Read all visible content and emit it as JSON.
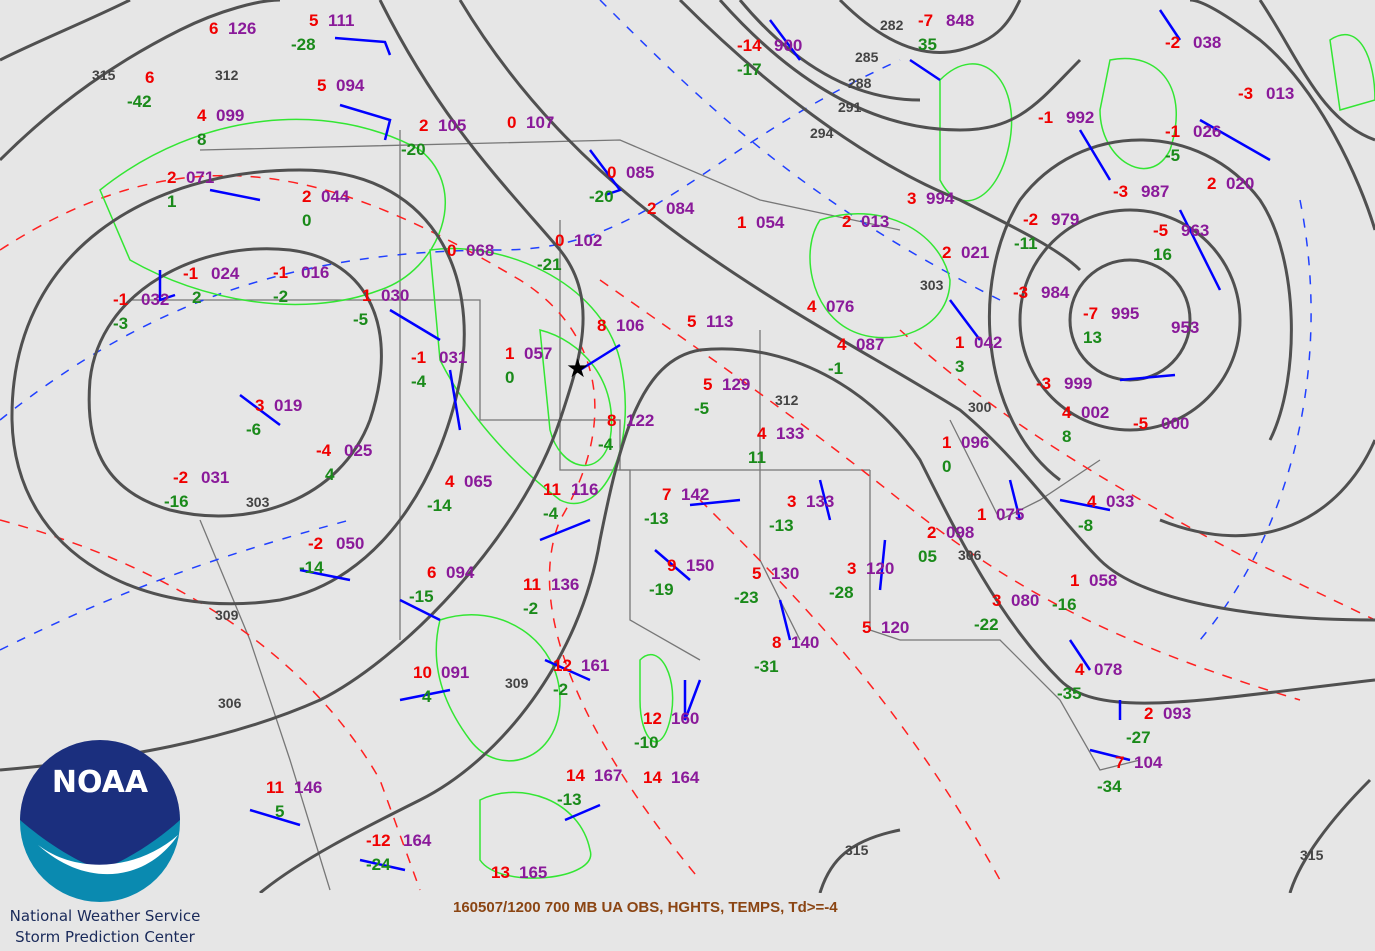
{
  "caption": "160507/1200 700 MB UA OBS, HGHTS, TEMPS, Td>=-4",
  "agency": {
    "line1": "National Weather Service",
    "line2": "Storm Prediction Center",
    "logo_text": "NOAA"
  },
  "colors": {
    "background": "#e6e6e6",
    "height_contour": "#505050",
    "temperature": "#f00000",
    "height": "#8a1a9a",
    "dewpoint": "#1a8a1a",
    "dewpoint_contour": "#33e633",
    "wind_barb": "#0000ff",
    "caption": "#8b4513"
  },
  "contour_labels": [
    "315",
    "312",
    "309",
    "306",
    "303",
    "300",
    "294",
    "291",
    "288",
    "285",
    "282",
    "312",
    "306",
    "309",
    "315",
    "303",
    "315"
  ],
  "stations": [
    {
      "t": "6",
      "h": "126",
      "td": ""
    },
    {
      "t": "5",
      "h": "111",
      "td": "-28"
    },
    {
      "t": "6",
      "h": "",
      "td": "-42"
    },
    {
      "t": "5",
      "h": "094",
      "td": ""
    },
    {
      "t": "4",
      "h": "099",
      "td": "8"
    },
    {
      "t": "2",
      "h": "105",
      "td": "-20"
    },
    {
      "t": "0",
      "h": "107",
      "td": ""
    },
    {
      "t": "2",
      "h": "071",
      "td": "1"
    },
    {
      "t": "2",
      "h": "044",
      "td": "0"
    },
    {
      "t": "0",
      "h": "085",
      "td": "-20"
    },
    {
      "t": "2",
      "h": "084",
      "td": ""
    },
    {
      "t": "1",
      "h": "054",
      "td": ""
    },
    {
      "t": "2",
      "h": "013",
      "td": ""
    },
    {
      "t": "3",
      "h": "994",
      "td": ""
    },
    {
      "t": "0",
      "h": "068",
      "td": ""
    },
    {
      "t": "0",
      "h": "102",
      "td": "-21"
    },
    {
      "t": "-1",
      "h": "024",
      "td": "2"
    },
    {
      "t": "-1",
      "h": "016",
      "td": "-2"
    },
    {
      "t": "-1",
      "h": "032",
      "td": "-3"
    },
    {
      "t": "1",
      "h": "030",
      "td": "-5"
    },
    {
      "t": "8",
      "h": "106",
      "td": ""
    },
    {
      "t": "5",
      "h": "113",
      "td": ""
    },
    {
      "t": "4",
      "h": "076",
      "td": ""
    },
    {
      "t": "4",
      "h": "087",
      "td": "-1"
    },
    {
      "t": "-1",
      "h": "031",
      "td": "-4"
    },
    {
      "t": "1",
      "h": "057",
      "td": "0"
    },
    {
      "t": "5",
      "h": "129",
      "td": "-5"
    },
    {
      "t": "3",
      "h": "019",
      "td": "-6"
    },
    {
      "t": "8",
      "h": "122",
      "td": "-4"
    },
    {
      "t": "4",
      "h": "133",
      "td": "11"
    },
    {
      "t": "-4",
      "h": "025",
      "td": "4"
    },
    {
      "t": "-2",
      "h": "031",
      "td": "-16"
    },
    {
      "t": "4",
      "h": "065",
      "td": "-14"
    },
    {
      "t": "11",
      "h": "116",
      "td": "-4"
    },
    {
      "t": "7",
      "h": "142",
      "td": "-13"
    },
    {
      "t": "3",
      "h": "133",
      "td": "-13"
    },
    {
      "t": "-2",
      "h": "050",
      "td": "-14"
    },
    {
      "t": "6",
      "h": "094",
      "td": "-15"
    },
    {
      "t": "9",
      "h": "150",
      "td": "-19"
    },
    {
      "t": "5",
      "h": "130",
      "td": "-23"
    },
    {
      "t": "3",
      "h": "120",
      "td": "-28"
    },
    {
      "t": "11",
      "h": "136",
      "td": "-2"
    },
    {
      "t": "10",
      "h": "091",
      "td": "4"
    },
    {
      "t": "12",
      "h": "161",
      "td": "-2"
    },
    {
      "t": "8",
      "h": "140",
      "td": "-31"
    },
    {
      "t": "5",
      "h": "120",
      "td": ""
    },
    {
      "t": "12",
      "h": "160",
      "td": "-10"
    },
    {
      "t": "14",
      "h": "167",
      "td": "-13"
    },
    {
      "t": "14",
      "h": "164",
      "td": ""
    },
    {
      "t": "11",
      "h": "146",
      "td": "5"
    },
    {
      "t": "-12",
      "h": "164",
      "td": "-24"
    },
    {
      "t": "13",
      "h": "165",
      "td": ""
    },
    {
      "t": "1",
      "h": "042",
      "td": "3"
    },
    {
      "t": "1",
      "h": "096",
      "td": "0"
    },
    {
      "t": "2",
      "h": "098",
      "td": "05"
    },
    {
      "t": "1",
      "h": "075",
      "td": ""
    },
    {
      "t": "3",
      "h": "080",
      "td": "-22"
    },
    {
      "t": "1",
      "h": "058",
      "td": "-16"
    },
    {
      "t": "4",
      "h": "033",
      "td": "-8"
    },
    {
      "t": "-5",
      "h": "000",
      "td": ""
    },
    {
      "t": "4",
      "h": "002",
      "td": "8"
    },
    {
      "t": "-3",
      "h": "999",
      "td": ""
    },
    {
      "t": "-7",
      "h": "995",
      "td": "13"
    },
    {
      "t": "",
      "h": "953",
      "td": ""
    },
    {
      "t": "-3",
      "h": "984",
      "td": ""
    },
    {
      "t": "-2",
      "h": "979",
      "td": "-11"
    },
    {
      "t": "2",
      "h": "021",
      "td": ""
    },
    {
      "t": "-3",
      "h": "987",
      "td": ""
    },
    {
      "t": "-5",
      "h": "963",
      "td": "16"
    },
    {
      "t": "2",
      "h": "020",
      "td": ""
    },
    {
      "t": "-1",
      "h": "992",
      "td": ""
    },
    {
      "t": "-1",
      "h": "026",
      "td": "-5"
    },
    {
      "t": "-2",
      "h": "038",
      "td": ""
    },
    {
      "t": "-3",
      "h": "013",
      "td": ""
    },
    {
      "t": "-7",
      "h": "848",
      "td": "35"
    },
    {
      "t": "-14",
      "h": "900",
      "td": "-17"
    },
    {
      "t": "4",
      "h": "078",
      "td": "-35"
    },
    {
      "t": "2",
      "h": "093",
      "td": "-27"
    },
    {
      "t": "7",
      "h": "104",
      "td": "-34"
    }
  ]
}
